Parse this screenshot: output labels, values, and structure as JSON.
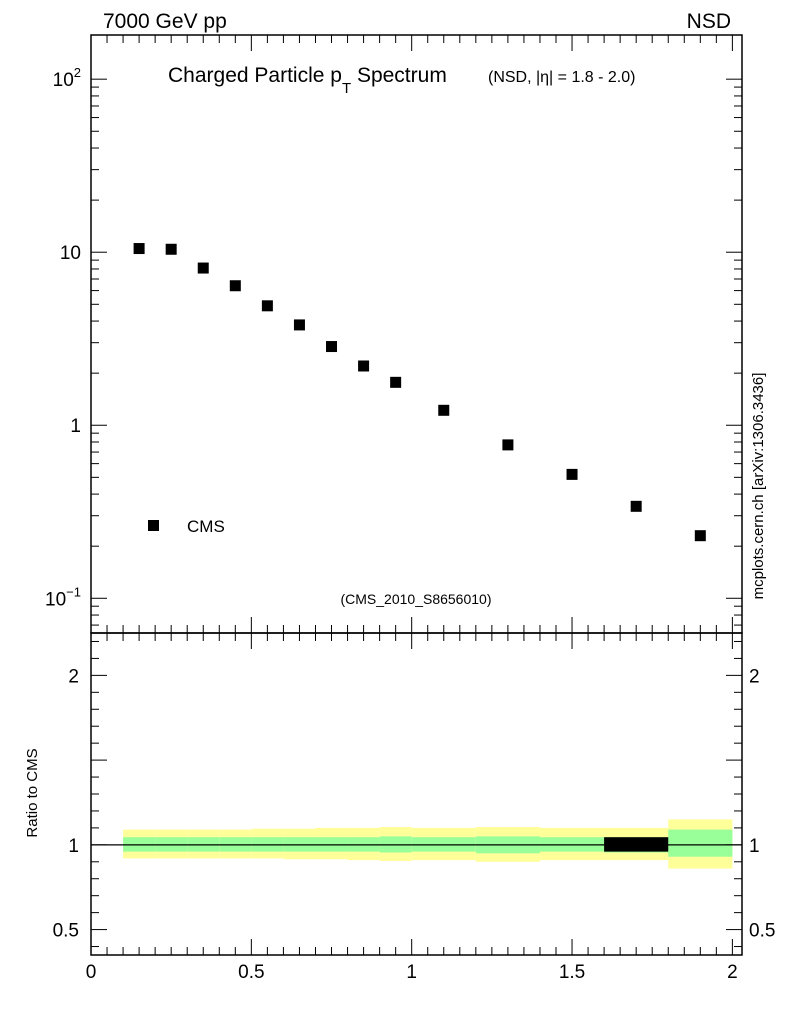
{
  "header": {
    "left": "7000 GeV pp",
    "right": "NSD"
  },
  "title": {
    "main": "Charged Particle p",
    "sub": "T",
    "main2": " Spectrum",
    "extra": "(NSD, |η| = 1.8 - 2.0)"
  },
  "watermark": "(CMS_2010_S8656010)",
  "side_label": "mcplots.cern.ch [arXiv:1306.3436]",
  "colors": {
    "band_outer": "#ffff99",
    "band_inner": "#99ff99",
    "marker": "#000000",
    "watermark": "#999999",
    "side_label": "#666666"
  },
  "chart_data": [
    {
      "type": "scatter",
      "yscale": "log",
      "xlim": [
        0,
        2.03
      ],
      "ylim": [
        0.063,
        180
      ],
      "ytick_labels": [
        "10^-1",
        "1",
        "10",
        "10^2"
      ],
      "legend": {
        "placement": "bottom-left"
      },
      "series": [
        {
          "name": "CMS",
          "x": [
            0.15,
            0.25,
            0.35,
            0.45,
            0.55,
            0.65,
            0.75,
            0.85,
            0.95,
            1.1,
            1.3,
            1.5,
            1.7,
            1.9
          ],
          "y": [
            10.5,
            10.4,
            8.1,
            6.4,
            4.9,
            3.8,
            2.85,
            2.2,
            1.77,
            1.22,
            0.77,
            0.52,
            0.34,
            0.23
          ]
        }
      ]
    },
    {
      "type": "area",
      "ylabel": "Ratio to CMS",
      "xlim": [
        0,
        2.03
      ],
      "ylim": [
        0.35,
        2.25
      ],
      "xtick_labels": [
        "0",
        "0.5",
        "1",
        "1.5",
        "2"
      ],
      "ytick_labels": [
        "0.5",
        "1",
        "2"
      ],
      "reference_line": 1,
      "bands": {
        "x_edges": [
          0.1,
          0.2,
          0.3,
          0.4,
          0.5,
          0.6,
          0.7,
          0.8,
          0.9,
          1.0,
          1.2,
          1.4,
          1.6,
          1.8,
          2.0
        ],
        "stat_lo": [
          0.96,
          0.96,
          0.96,
          0.96,
          0.96,
          0.96,
          0.96,
          0.96,
          0.955,
          0.96,
          0.95,
          0.96,
          0.955,
          0.93
        ],
        "stat_hi": [
          1.045,
          1.045,
          1.045,
          1.045,
          1.045,
          1.045,
          1.045,
          1.045,
          1.05,
          1.045,
          1.05,
          1.045,
          1.045,
          1.09
        ],
        "total_lo": [
          0.92,
          0.92,
          0.92,
          0.92,
          0.92,
          0.915,
          0.915,
          0.91,
          0.905,
          0.91,
          0.9,
          0.91,
          0.91,
          0.86
        ],
        "total_hi": [
          1.09,
          1.09,
          1.09,
          1.09,
          1.095,
          1.095,
          1.1,
          1.1,
          1.105,
          1.1,
          1.105,
          1.1,
          1.1,
          1.15
        ],
        "black_bin": [
          1.6,
          1.8,
          0.96,
          1.045
        ]
      }
    }
  ]
}
